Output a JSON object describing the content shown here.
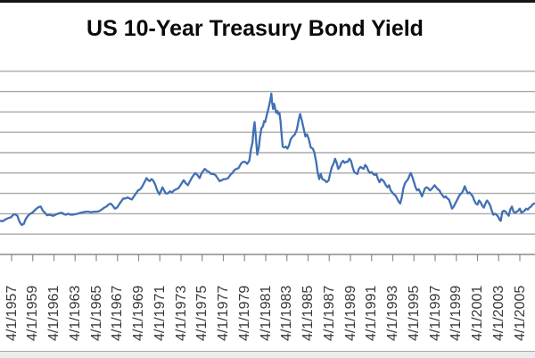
{
  "window": {
    "top_border_color": "#151515",
    "bottom_strip_color": "#ececec"
  },
  "chart_data": {
    "type": "line",
    "title": "US 10-Year Treasury Bond Yield",
    "series_name": "US 10-Year Treasury Bond Yield",
    "legend": "none",
    "grid": true,
    "line_color": "#4170b4",
    "gridline_color": "#a8a8a8",
    "axis_color": "#8a8a8a",
    "label_color": "#383838",
    "x_tick_labels": [
      "4/1/1957",
      "4/1/1959",
      "4/1/1961",
      "4/1/1963",
      "4/1/1965",
      "4/1/1967",
      "4/1/1969",
      "4/1/1971",
      "4/1/1973",
      "4/1/1975",
      "4/1/1977",
      "4/1/1979",
      "4/1/1981",
      "4/1/1983",
      "4/1/1985",
      "4/1/1987",
      "4/1/1989",
      "4/1/1991",
      "4/1/1993",
      "4/1/1995",
      "4/1/1997",
      "4/1/1999",
      "4/1/2001",
      "4/1/2003",
      "4/1/2005"
    ],
    "x_first_tick_year": 1957.25,
    "x_tick_interval_years": 2,
    "x_visible_year_range": [
      1956.15,
      2006.7
    ],
    "y_axis": {
      "min": 0,
      "max": 18,
      "gridline_step": 2,
      "labels_visible": false,
      "unit": "percent"
    },
    "points": [
      [
        1956.2,
        3.3
      ],
      [
        1956.4,
        3.25
      ],
      [
        1956.6,
        3.4
      ],
      [
        1956.8,
        3.5
      ],
      [
        1957.0,
        3.6
      ],
      [
        1957.2,
        3.65
      ],
      [
        1957.4,
        3.9
      ],
      [
        1957.6,
        3.95
      ],
      [
        1957.8,
        3.8
      ],
      [
        1958.0,
        3.2
      ],
      [
        1958.2,
        2.9
      ],
      [
        1958.4,
        3.0
      ],
      [
        1958.6,
        3.5
      ],
      [
        1958.8,
        3.8
      ],
      [
        1959.0,
        4.0
      ],
      [
        1959.2,
        4.1
      ],
      [
        1959.4,
        4.3
      ],
      [
        1959.6,
        4.5
      ],
      [
        1959.8,
        4.65
      ],
      [
        1960.0,
        4.7
      ],
      [
        1960.2,
        4.3
      ],
      [
        1960.4,
        4.1
      ],
      [
        1960.6,
        3.85
      ],
      [
        1960.8,
        3.9
      ],
      [
        1961.0,
        3.85
      ],
      [
        1961.2,
        3.8
      ],
      [
        1961.4,
        3.9
      ],
      [
        1961.6,
        4.0
      ],
      [
        1961.8,
        4.05
      ],
      [
        1962.0,
        4.1
      ],
      [
        1962.2,
        3.95
      ],
      [
        1962.4,
        3.9
      ],
      [
        1962.6,
        4.0
      ],
      [
        1962.8,
        3.9
      ],
      [
        1963.0,
        3.9
      ],
      [
        1963.25,
        3.95
      ],
      [
        1963.5,
        4.0
      ],
      [
        1963.75,
        4.1
      ],
      [
        1964.0,
        4.15
      ],
      [
        1964.25,
        4.2
      ],
      [
        1964.5,
        4.2
      ],
      [
        1964.75,
        4.15
      ],
      [
        1965.0,
        4.2
      ],
      [
        1965.25,
        4.2
      ],
      [
        1965.5,
        4.25
      ],
      [
        1965.75,
        4.4
      ],
      [
        1966.0,
        4.6
      ],
      [
        1966.2,
        4.7
      ],
      [
        1966.4,
        4.9
      ],
      [
        1966.6,
        5.0
      ],
      [
        1966.8,
        4.8
      ],
      [
        1967.0,
        4.5
      ],
      [
        1967.2,
        4.6
      ],
      [
        1967.4,
        4.9
      ],
      [
        1967.6,
        5.2
      ],
      [
        1967.8,
        5.5
      ],
      [
        1968.0,
        5.5
      ],
      [
        1968.2,
        5.6
      ],
      [
        1968.4,
        5.5
      ],
      [
        1968.6,
        5.4
      ],
      [
        1968.8,
        5.7
      ],
      [
        1969.0,
        6.0
      ],
      [
        1969.2,
        6.3
      ],
      [
        1969.4,
        6.4
      ],
      [
        1969.6,
        6.7
      ],
      [
        1969.8,
        7.1
      ],
      [
        1970.0,
        7.5
      ],
      [
        1970.15,
        7.3
      ],
      [
        1970.3,
        7.2
      ],
      [
        1970.45,
        7.4
      ],
      [
        1970.6,
        7.3
      ],
      [
        1970.8,
        6.9
      ],
      [
        1971.0,
        6.3
      ],
      [
        1971.2,
        5.9
      ],
      [
        1971.35,
        6.2
      ],
      [
        1971.5,
        6.6
      ],
      [
        1971.65,
        6.3
      ],
      [
        1971.8,
        6.0
      ],
      [
        1972.0,
        6.0
      ],
      [
        1972.2,
        6.2
      ],
      [
        1972.4,
        6.1
      ],
      [
        1972.6,
        6.3
      ],
      [
        1972.8,
        6.4
      ],
      [
        1973.0,
        6.5
      ],
      [
        1973.2,
        6.8
      ],
      [
        1973.5,
        7.3
      ],
      [
        1973.7,
        7.0
      ],
      [
        1973.9,
        6.8
      ],
      [
        1974.1,
        7.2
      ],
      [
        1974.3,
        7.6
      ],
      [
        1974.6,
        8.0
      ],
      [
        1974.8,
        7.8
      ],
      [
        1975.0,
        7.5
      ],
      [
        1975.2,
        8.0
      ],
      [
        1975.5,
        8.4
      ],
      [
        1975.7,
        8.2
      ],
      [
        1975.9,
        8.1
      ],
      [
        1976.1,
        7.9
      ],
      [
        1976.3,
        7.9
      ],
      [
        1976.5,
        7.8
      ],
      [
        1976.7,
        7.5
      ],
      [
        1976.9,
        7.2
      ],
      [
        1977.1,
        7.3
      ],
      [
        1977.3,
        7.4
      ],
      [
        1977.5,
        7.4
      ],
      [
        1977.7,
        7.5
      ],
      [
        1977.9,
        7.8
      ],
      [
        1978.1,
        8.0
      ],
      [
        1978.3,
        8.3
      ],
      [
        1978.5,
        8.4
      ],
      [
        1978.7,
        8.5
      ],
      [
        1978.9,
        8.9
      ],
      [
        1979.1,
        9.1
      ],
      [
        1979.3,
        9.1
      ],
      [
        1979.5,
        8.9
      ],
      [
        1979.7,
        9.2
      ],
      [
        1979.85,
        10.3
      ],
      [
        1980.0,
        11.0
      ],
      [
        1980.1,
        12.2
      ],
      [
        1980.2,
        13.0
      ],
      [
        1980.3,
        11.8
      ],
      [
        1980.45,
        9.8
      ],
      [
        1980.6,
        10.5
      ],
      [
        1980.7,
        11.5
      ],
      [
        1980.85,
        12.4
      ],
      [
        1981.0,
        12.6
      ],
      [
        1981.1,
        13.1
      ],
      [
        1981.2,
        13.0
      ],
      [
        1981.35,
        13.7
      ],
      [
        1981.5,
        14.3
      ],
      [
        1981.6,
        14.8
      ],
      [
        1981.7,
        15.2
      ],
      [
        1981.78,
        15.8
      ],
      [
        1981.85,
        15.0
      ],
      [
        1981.95,
        14.3
      ],
      [
        1982.05,
        14.8
      ],
      [
        1982.15,
        14.3
      ],
      [
        1982.25,
        13.9
      ],
      [
        1982.35,
        14.1
      ],
      [
        1982.45,
        13.8
      ],
      [
        1982.55,
        13.9
      ],
      [
        1982.65,
        13.1
      ],
      [
        1982.75,
        11.8
      ],
      [
        1982.85,
        10.6
      ],
      [
        1983.0,
        10.5
      ],
      [
        1983.15,
        10.6
      ],
      [
        1983.3,
        10.4
      ],
      [
        1983.45,
        10.7
      ],
      [
        1983.6,
        11.3
      ],
      [
        1983.8,
        11.6
      ],
      [
        1984.0,
        11.8
      ],
      [
        1984.2,
        12.3
      ],
      [
        1984.4,
        13.4
      ],
      [
        1984.5,
        13.8
      ],
      [
        1984.65,
        13.2
      ],
      [
        1984.8,
        12.5
      ],
      [
        1985.0,
        11.6
      ],
      [
        1985.15,
        11.8
      ],
      [
        1985.3,
        11.4
      ],
      [
        1985.5,
        10.5
      ],
      [
        1985.7,
        10.4
      ],
      [
        1985.85,
        10.0
      ],
      [
        1986.0,
        9.2
      ],
      [
        1986.15,
        8.1
      ],
      [
        1986.3,
        7.4
      ],
      [
        1986.45,
        7.9
      ],
      [
        1986.6,
        7.4
      ],
      [
        1986.8,
        7.3
      ],
      [
        1987.0,
        7.1
      ],
      [
        1987.2,
        7.3
      ],
      [
        1987.35,
        8.0
      ],
      [
        1987.5,
        8.6
      ],
      [
        1987.65,
        8.9
      ],
      [
        1987.8,
        9.4
      ],
      [
        1987.95,
        9.0
      ],
      [
        1988.1,
        8.4
      ],
      [
        1988.25,
        8.6
      ],
      [
        1988.4,
        9.0
      ],
      [
        1988.55,
        9.2
      ],
      [
        1988.7,
        9.0
      ],
      [
        1988.85,
        9.1
      ],
      [
        1989.0,
        9.1
      ],
      [
        1989.15,
        9.4
      ],
      [
        1989.3,
        9.2
      ],
      [
        1989.45,
        8.6
      ],
      [
        1989.6,
        8.1
      ],
      [
        1989.75,
        8.0
      ],
      [
        1989.9,
        7.9
      ],
      [
        1990.05,
        8.4
      ],
      [
        1990.2,
        8.6
      ],
      [
        1990.35,
        8.5
      ],
      [
        1990.5,
        8.4
      ],
      [
        1990.65,
        8.8
      ],
      [
        1990.8,
        8.6
      ],
      [
        1990.95,
        8.2
      ],
      [
        1991.1,
        8.0
      ],
      [
        1991.25,
        8.1
      ],
      [
        1991.4,
        7.9
      ],
      [
        1991.55,
        7.8
      ],
      [
        1991.7,
        7.9
      ],
      [
        1991.85,
        7.4
      ],
      [
        1992.0,
        7.1
      ],
      [
        1992.15,
        7.4
      ],
      [
        1992.3,
        7.3
      ],
      [
        1992.45,
        7.1
      ],
      [
        1992.6,
        6.8
      ],
      [
        1992.75,
        6.6
      ],
      [
        1992.9,
        6.8
      ],
      [
        1993.05,
        6.3
      ],
      [
        1993.2,
        6.1
      ],
      [
        1993.35,
        5.9
      ],
      [
        1993.5,
        5.8
      ],
      [
        1993.65,
        5.5
      ],
      [
        1993.8,
        5.2
      ],
      [
        1993.95,
        5.0
      ],
      [
        1994.1,
        5.6
      ],
      [
        1994.25,
        6.5
      ],
      [
        1994.4,
        7.0
      ],
      [
        1994.55,
        7.2
      ],
      [
        1994.7,
        7.4
      ],
      [
        1994.85,
        7.8
      ],
      [
        1994.95,
        8.0
      ],
      [
        1995.1,
        7.6
      ],
      [
        1995.25,
        7.1
      ],
      [
        1995.4,
        6.6
      ],
      [
        1995.55,
        6.3
      ],
      [
        1995.7,
        6.4
      ],
      [
        1995.85,
        6.1
      ],
      [
        1996.0,
        5.7
      ],
      [
        1996.15,
        6.1
      ],
      [
        1996.3,
        6.5
      ],
      [
        1996.45,
        6.6
      ],
      [
        1996.6,
        6.5
      ],
      [
        1996.75,
        6.3
      ],
      [
        1996.9,
        6.4
      ],
      [
        1997.05,
        6.6
      ],
      [
        1997.2,
        6.8
      ],
      [
        1997.35,
        6.6
      ],
      [
        1997.5,
        6.4
      ],
      [
        1997.65,
        6.3
      ],
      [
        1997.8,
        6.0
      ],
      [
        1997.95,
        5.8
      ],
      [
        1998.1,
        5.6
      ],
      [
        1998.25,
        5.7
      ],
      [
        1998.4,
        5.5
      ],
      [
        1998.55,
        5.4
      ],
      [
        1998.7,
        5.0
      ],
      [
        1998.85,
        4.5
      ],
      [
        1999.0,
        4.7
      ],
      [
        1999.15,
        5.0
      ],
      [
        1999.3,
        5.3
      ],
      [
        1999.45,
        5.6
      ],
      [
        1999.6,
        5.9
      ],
      [
        1999.75,
        6.0
      ],
      [
        1999.9,
        6.3
      ],
      [
        2000.05,
        6.7
      ],
      [
        2000.2,
        6.3
      ],
      [
        2000.35,
        6.0
      ],
      [
        2000.5,
        6.1
      ],
      [
        2000.65,
        5.9
      ],
      [
        2000.8,
        5.7
      ],
      [
        2000.95,
        5.3
      ],
      [
        2001.1,
        5.0
      ],
      [
        2001.25,
        4.9
      ],
      [
        2001.4,
        5.3
      ],
      [
        2001.55,
        5.1
      ],
      [
        2001.7,
        4.8
      ],
      [
        2001.85,
        4.6
      ],
      [
        2002.0,
        5.0
      ],
      [
        2002.15,
        5.3
      ],
      [
        2002.3,
        5.1
      ],
      [
        2002.45,
        4.8
      ],
      [
        2002.6,
        4.3
      ],
      [
        2002.75,
        3.9
      ],
      [
        2002.9,
        4.0
      ],
      [
        2003.05,
        3.9
      ],
      [
        2003.2,
        3.7
      ],
      [
        2003.35,
        3.4
      ],
      [
        2003.45,
        3.3
      ],
      [
        2003.6,
        4.2
      ],
      [
        2003.75,
        4.3
      ],
      [
        2003.9,
        4.2
      ],
      [
        2004.05,
        4.0
      ],
      [
        2004.2,
        3.8
      ],
      [
        2004.35,
        4.4
      ],
      [
        2004.5,
        4.7
      ],
      [
        2004.65,
        4.2
      ],
      [
        2004.8,
        4.1
      ],
      [
        2004.95,
        4.2
      ],
      [
        2005.1,
        4.3
      ],
      [
        2005.25,
        4.5
      ],
      [
        2005.4,
        4.1
      ],
      [
        2005.55,
        4.2
      ],
      [
        2005.7,
        4.3
      ],
      [
        2005.85,
        4.5
      ],
      [
        2006.0,
        4.4
      ],
      [
        2006.15,
        4.6
      ],
      [
        2006.3,
        4.7
      ],
      [
        2006.45,
        4.9
      ],
      [
        2006.6,
        5.0
      ]
    ]
  }
}
